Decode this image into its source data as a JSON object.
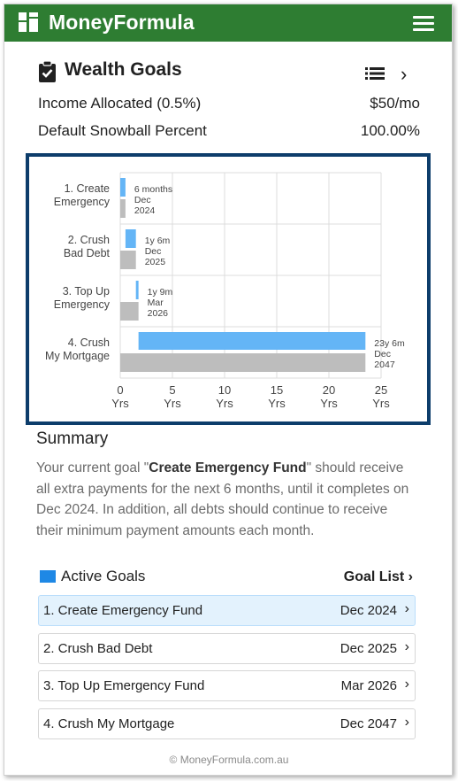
{
  "header": {
    "brand": "MoneyFormula",
    "logo_icon": "grid-logo-icon",
    "menu_icon": "hamburger-menu-icon",
    "color": "#2e7d32"
  },
  "page": {
    "title": "Wealth Goals",
    "title_icon": "clipboard-check-icon",
    "list_icon": "list-icon",
    "next_icon": "chevron-right-icon",
    "next_glyph": "›"
  },
  "settings": [
    {
      "label": "Income Allocated (0.5%)",
      "value": "$50/mo"
    },
    {
      "label": "Default Snowball Percent",
      "value": "100.00%"
    }
  ],
  "chart_data": {
    "type": "bar",
    "orientation": "horizontal",
    "categories": [
      [
        "1. Create",
        "Emergency"
      ],
      [
        "2. Crush",
        "Bad Debt"
      ],
      [
        "3. Top Up",
        "Emergency"
      ],
      [
        "4. Crush",
        "My Mortgage"
      ]
    ],
    "series": [
      {
        "color": "#64b5f6",
        "ranges": [
          [
            0,
            0.5
          ],
          [
            0.5,
            1.5
          ],
          [
            1.5,
            1.75
          ],
          [
            1.75,
            23.5
          ]
        ]
      },
      {
        "color": "#bdbdbd",
        "values": [
          0.5,
          1.5,
          1.75,
          23.5
        ]
      }
    ],
    "annotations": [
      [
        "6 months",
        "Dec",
        "2024"
      ],
      [
        "1y 6m",
        "Dec",
        "2025"
      ],
      [
        "1y 9m",
        "Mar",
        "2026"
      ],
      [
        "23y 6m",
        "Dec",
        "2047"
      ]
    ],
    "xticks": [
      0,
      5,
      10,
      15,
      20,
      25
    ],
    "xtick_unit": "Yrs",
    "xlim": [
      0,
      25
    ],
    "grid": true,
    "border_color": "#0d3d6b"
  },
  "summary": {
    "title": "Summary",
    "text_before": "Your current goal \"",
    "goal_name": "Create Emergency Fund",
    "text_after": "\" should receive all extra payments for the next 6 months, until it completes on Dec 2024. In addition, all debts should continue to receive their minimum payment amounts each month."
  },
  "active_goals": {
    "title": "Active Goals",
    "legend_color": "#1e88e5",
    "goal_list_label": "Goal List",
    "chevron": "›",
    "items": [
      {
        "name": "1. Create Emergency Fund",
        "date": "Dec 2024",
        "active": true
      },
      {
        "name": "2. Crush Bad Debt",
        "date": "Dec 2025",
        "active": false
      },
      {
        "name": "3. Top Up Emergency Fund",
        "date": "Mar 2026",
        "active": false
      },
      {
        "name": "4. Crush My Mortgage",
        "date": "Dec 2047",
        "active": false
      }
    ]
  },
  "footer": {
    "text": "© MoneyFormula.com.au"
  }
}
